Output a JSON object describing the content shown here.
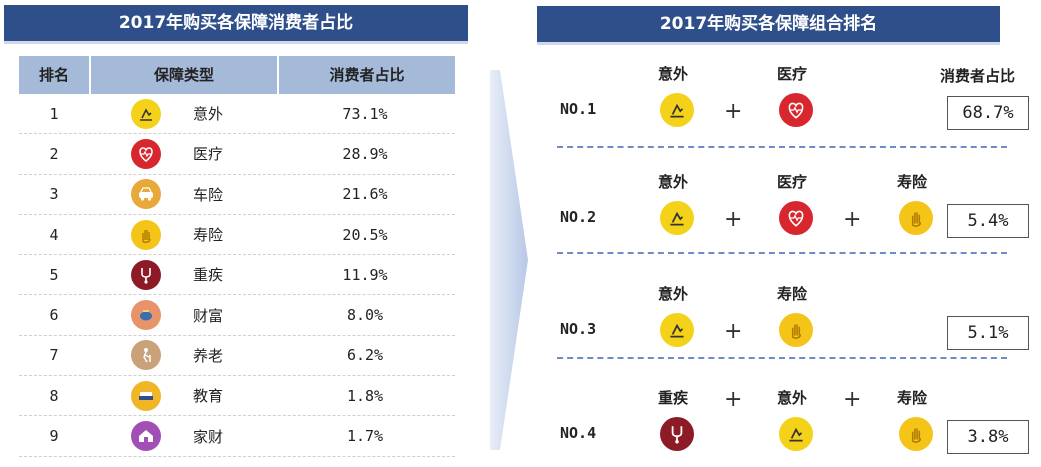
{
  "left_title": "2017年购买各保障消费者占比",
  "right_title": "2017年购买各保障组合排名",
  "table_headers": {
    "rank": "排名",
    "type": "保障类型",
    "share": "消费者占比"
  },
  "chart_data": [
    {
      "type": "table",
      "title": "2017年购买各保障消费者占比",
      "columns": [
        "排名",
        "保障类型",
        "消费者占比"
      ],
      "rows": [
        {
          "rank": "1",
          "type": "意外",
          "share": "73.1%",
          "icon": "accident-icon",
          "color": "#f5d21a"
        },
        {
          "rank": "2",
          "type": "医疗",
          "share": "28.9%",
          "icon": "heart-icon",
          "color": "#d8262e"
        },
        {
          "rank": "3",
          "type": "车险",
          "share": "21.6%",
          "icon": "car-icon",
          "color": "#e8a93a"
        },
        {
          "rank": "4",
          "type": "寿险",
          "share": "20.5%",
          "icon": "hand-icon",
          "color": "#f4c419"
        },
        {
          "rank": "5",
          "type": "重疾",
          "share": "11.9%",
          "icon": "stethoscope-icon",
          "color": "#8d1b26"
        },
        {
          "rank": "6",
          "type": "财富",
          "share": "8.0%",
          "icon": "piggy-icon",
          "color": "#e8946a"
        },
        {
          "rank": "7",
          "type": "养老",
          "share": "6.2%",
          "icon": "elder-icon",
          "color": "#c9a27a"
        },
        {
          "rank": "8",
          "type": "教育",
          "share": "1.8%",
          "icon": "book-icon",
          "color": "#f0b628"
        },
        {
          "rank": "9",
          "type": "家财",
          "share": "1.7%",
          "icon": "house-icon",
          "color": "#a24fb5"
        }
      ]
    },
    {
      "type": "table",
      "title": "2017年购买各保障组合排名",
      "share_header": "消费者占比",
      "rows": [
        {
          "rank": "NO.1",
          "items": [
            "意外",
            "医疗"
          ],
          "share": "68.7%"
        },
        {
          "rank": "NO.2",
          "items": [
            "意外",
            "医疗",
            "寿险"
          ],
          "share": "5.4%"
        },
        {
          "rank": "NO.3",
          "items": [
            "意外",
            "寿险"
          ],
          "share": "5.1%"
        },
        {
          "rank": "NO.4",
          "items": [
            "重疾",
            "意外",
            "寿险"
          ],
          "share": "3.8%"
        }
      ]
    }
  ],
  "plus_symbol": "+"
}
